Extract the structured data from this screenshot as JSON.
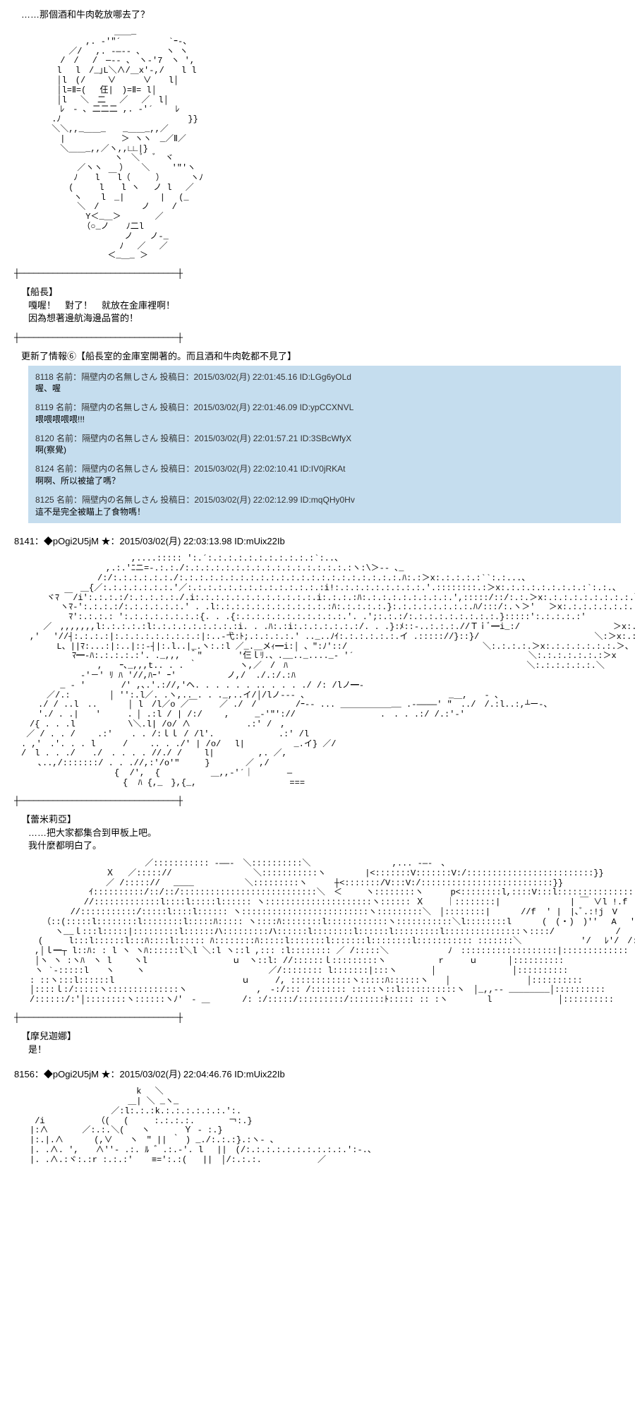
{
  "top_fragment": "……那個酒和牛肉乾放哪去了？",
  "aa1": "　　　　　　　　　　　＿＿_\n　　　 　　　　,. -'\"´　　　　　 `ｰ-、\n　　　　　 ／/　 ,. -―‐- ､　　　ヽ ヽ\n　　　　 /　/　 /　─‐- 、　ヽ‐'7　ヽ ',\n　　 　 l　 l　/_｣L＼∧/＿x'-,/　　l l\n　　 　 │l　(/　　 ∨ 　　 ∨　　l│\n　　 　 │l=Ⅱ=(　 仼|　)=Ⅱ= l│\n　　 　 │l　 ＼　二　 ／　 ／　l│\n　　 　　ﾚ　- ､ 二二二 ,. -'´　　 ﾚ\n　　 　.ﾉ　　　　　　　　　　　　　　　}}\n　　　 ＼＼,,_＿＿_　　_＿＿_,,／\n　　　　 |　　　　　　 ＞ ヽヽ　_／Ⅱ／\n　　　　 ＼＿＿_,,／ヽ,,∟∟|}\n　　　　　　　　　　　ヽ　＼ﾞ　ﾞ　ヾ\n　　 　　　　／ヽヽ　　） 　＼　　 '\"'ヽ\n　　 　　　 ﾉ　　l　￣l（　　　）　　　 ヽﾉ\n　　 　　　(　　　l　　l ヽ　 ノ l　 ／\n　　 　　　 ヽ 　 l　_| 　　　 |　 (_\n　　 　　　　＼　/　　　　　ノ　　 /\n　　 　　　　　Y＜_＿＞　　　　／\n　　 　　　　 （○_ノ　　ﾉ二l\n　　 　　　　　　　　　 ノ　　ノ-_\n　　 　　　　　　　　　ﾉ　 ／　 ／\n　　 　　　　　　　 ＜_＿_ ＞",
  "speaker1": "【船長】",
  "text1": "嘎喔！　對了！　就放在金庫裡啊！\n因為想著邊航海邊品嘗的！",
  "update_label": "更新了情報⑥【船長室的金庫室開著的。而且酒和牛肉乾都不見了】",
  "comments": [
    {
      "header": "8118 名前：隔壁内の名無しさん 投稿日：2015/03/02(月) 22:01:45.16 ID:LGg6yOLd",
      "body": "喔、喔"
    },
    {
      "header": "8119 名前：隔壁内の名無しさん 投稿日：2015/03/02(月) 22:01:46.09 ID:ypCCXNVL",
      "body": "喂喂喂喂喂!!!"
    },
    {
      "header": "8120 名前：隔壁内の名無しさん 投稿日：2015/03/02(月) 22:01:57.21 ID:3SBcWfyX",
      "body": "啊(察覺)"
    },
    {
      "header": "8124 名前：隔壁内の名無しさん 投稿日：2015/03/02(月) 22:02:10.41 ID:IV0jRKAt",
      "body": "啊啊、所以被搶了嗎？"
    },
    {
      "header": "8125 名前：隔壁内の名無しさん 投稿日：2015/03/02(月) 22:02:12.99 ID:mqQHy0Hv",
      "body": "這不是完全被瞄上了食物嗎！"
    }
  ],
  "post1_header": "8141：◆pOgi2U5jM ★：2015/03/02(月) 22:03:13.98 ID:mUix22Ib",
  "aa2": "　　　　　　　　　　　　　,....::::: ':.´:.:.:.:.:.:.:.:.:.:.:`:..、\n　　　　　　　　　　,.:.'ﾆニ=-.:.:./:.:.:.:.:.:.:.:.:.:.:.:.:.:.:.:.:ヽ:\\＞-- ､_\n　　　　　　　　　/:/:.:.:.:.:.:./:.:.:.:.:.:.:.:.:.:.:.:.:.:.:.:.:.:.:.:.:.:.ﾊ:.:＞x:.:.:.:.:``:.:...、\n　　　　　　　＿{／:.:.:.:.:.:.:.'／:.:.:.:.:.:.:.:.:.:.:.:.:.:i!:.:.:.:.:.:.:.:.:.'.::::::::.:＞x:.:.:.:.:.:.:.:.:`:.:.、\n　　　ヾﾏ ￣/i':.:.:.:/:.:.:.:.:./.i:.:.:.:.:.:.:.:.:.:.:.:.i:.:.:.:ﾊ:.:.:.:.:.:.:.:.:.',:::::/::/:.:.＞x:.:.:.:.:.:.:.:.:.＼\n　　　　 ヽﾏ-':.:.:.:/:.:.:.:.:.:.' . .l:.:.:.:.:.:.:.:.:.:.:.:ﾊ:.:.:.:.:.}:.:.:.:.:.:.:.:.ﾊ/:::/:.ヽ＞'　 ＞x:.:.:.:.:.:.:.:.:＞x\n　　　　　 ﾏ':.:.:.: ':.:.:.:.:.:.:.:{. . .{:.:.:.:.:.:.:.:.:.:.:.'. .';:.:.:/:.:.:.:.:.:.:.:.:.}:::::':.:.:.:.:'　　　　　　＞x:.:.:.:.:.:.:.:.:＞x\n　　 ／　,,,,,,,l:.:.:.:.:l:.:.:.:.:.:.:.:.:i. . .ﾊ:.:i:.:.:.:.:.:.:/. . .}:ﾒ::-..:.:.:.//Ｔｉﾞ━i_:/　　　　　　　　　　　＞x:.:.:.:.:.:.:.:＞、\n　,' 　'//┤:.:.:.:|:.:.:.:.:.:.:.:.:|:..-弋:ﾄ;.:.:.:.:.' .._..ﾉｲ:.:.:.:.:.:.イ .::::://}::}/　　　　　　　　　　　　　 ＼:＞x:.:.:.:.:.:.:.:.＞、\n 　　　 L、||ﾏ:...:|:..|::-┤|:.l..|_.ヽ:.:l ／_.＿メｨ━i:│ 、\":ﾉ'::/　　　　　　　　　　　　　　　　＼:.:.:.:.＞x:.:.:.:.:.:.:.＞、\n　　　　　　ﾏ━-ﾊ:.:.:.:.:'. ._,,,　＾\" 　　　 '仨ｌﾘ.、.__.._...._- '´　　　　　　　　　　　　　　　　　　　　 ＼:.:.:.:.:.:.:＞x\n　　　　　　　　　,　　ｰ､_,,,t.. . . ｀　　　　　ヽ,／　/　ﾊ 　　　　　　　　　　　　　　　　　　　　　　　　　　　 ＼:.:.:.:.:.:.＼\n　　　　　　　-'－' ﾘ ﾊ '//,ﾊｰ' ｰ'          ノ,/  ./.:/.:ﾊ\n　　　　 _ - '　　 　 /' ,､.'.://,'ヘ. . . . . . .. . . . ./ /: /lノ━-\n　　　／/.:　　　　 │ ′':.l／. .ヽ,.. . . ._,..イ/│/lノ--- 、　　　　　　　　　　　　　　　　　_＿,　　- 、\n　　./ / ..l　..　　 　│ l　/l／o ／￣　　 ／ ./　/　　　　 /ｰ-- ... ＿＿＿＿＿＿__ .-――――' \"　../　/.:l..:,┴ー-、\n　　'./ . .|　　'　 　 ．│ .:l / | /:/　　 ,　　　_-'\"'://　　　　　　　　　　.　. . .:/ /.:'-'\n　/{ . . .l　　　　 　 \\＼.l| /o/ ∧　　　　　　 .:' /　,\n ／ / . . /　　 .:' 　 . . /:ｌｌ / /l'.　　　　　　　 .:' /l\n. ,'　.'. . . l　 　 /　　 .. . ./' | /o/ 　l|　 　 　 　_.イ} ／/\n/　l . . ./　　./　. . . . //./ /　　 l|　　　 　 ,. ／,\n　　､..,/:::::::/ . . .//,:'/o'\"　　　}　　 　 ／ ,/\n　　　　　　　　　　　{  /',  {　　　　　　＿,,‐'´｜　　　　―\n　　　　　　　　　　　　{  ﾊ {,_　},{_,　　　　　　　　　　　===",
  "speaker2": "【蕾米莉亞】",
  "text2": "……把大家都集合到甲板上吧。\n我什麼都明白了。",
  "aa3": "　　　　　　　　　　　　　　 ／::::::::::: -――-　＼::::::::::＼　　　　　　　　　 ,... -―-　、\n　　　　　　　　　　Ｘ　 ／:::::// 　　　　　　　　　＼:::::::::::ヽ　　　　 |<:::::::V:::::::V:/:::::::::::::::::::::::::}}\n　　　　　　　　　　／ /::::://　 ____　　　　　　＼:::::::::ヽ　　  ┼<:::::::/V:::V:/::::::::::::::::::::::::::}}\n　　　　　　　　ｲ::::::::::/::/::/:::::::::::::::::::::::::::＼　＜　   ヽ::::::::ヽ　　  p<::::::::l,::::V:::l::::::::::::::::::::::::::}}\n　　 　 　 　 //:::::::::::::l::::l:::::l:::::: ヽ:::::::::::::::::::::ヽ:::::: Ｘ　　 ｜::::::::|　　　　　　　  | ￣ ∨l !.f\n　　 　 　 //:::::::::::/:::::l::::l:::::: ヽ:::::::::::::::::::::::::ヽ:::::::::＼　│::::::::|　　　 //f  ' |　|､ﾞ.:!j　V\n　　　（::(:::::l::::::::l::::::::l:::::ﾊ::::: ヽ::::ﾊ::::::::l::::::::::::ヽ:::::::::::＼l::::::::l 　　　(　(・)　)'' 　A 　'::::::\n　　　　ヽ__ｌ:::l:::::|:::::::::l::::::ハ:::::::::ハ::::::l::::::::l::::::l:::::::::l:::::::::::::::ヽ::::/　　　　　 　 /　  F　_.}::::::::::::\n　　(　　　l:::l::::::l:::ﾊ::::l:::::: ﾊ::::::::ﾊ:::::l:::::::l:::::::l::::::::l::::::::::: :::::::＼　　　　　　　'/　 ﾚ'/　/:::::::::::::::::\n　 ,│ｌ━┬ l::ﾊ: : l ヽ ヽﾊ::::::l＼l ＼:l ヽ::l ,::: :l:::::::: ／ /:::::＼　　　　　　　ﾉ　:::::::::::::::::::|:::::::::::::\n　 │ヽ ヽ :ヽﾊ　ヽ l　　 ヽl　　　　　　　　　　ｕ　ヽ::l: //::::::ｌ:::::::::ヽ 　　　　 　r　　　ｕ 　　　│::::::::::\n　 ヽ `-:::::l　　ヽ　　 ヽ　　　　　　　　　　　　　　 ／/:::::::: l:::::::|:::ヽ　　　　│　　　　　　　　　│::::::::::\n　: ::ヽ:::l::::::l　　　　　　　　　　　　　　　ｕ　　　/, ::::::::::::ヽ:::::ﾊ::::::ヽ　　│　　　　　　　　　│::::::::::\n　│::::ｌ:/:::::ヽ::::::::::::::ヽ　　 　　　　　 ,　-:/::: /::::::: :::::ヽ::l:::::::::::ヽ　│_,,-- ________│::::::::::\n　/::::::/:'│::::::::ヽ::::::ヽﾉ'　- ＿ 　 　 /: :/:::::/:::::::::/:::::::ﾄ::::: :: :ヽ　　 　　l　 　 　　　　 │::::::::::",
  "speaker3": "【摩兒迦娜】",
  "text3": "是！",
  "post2_header": "8156：◆pOgi2U5jM ★：2015/03/02(月) 22:04:46.76 ID:mUix22Ib",
  "aa4": "　　　　　　　　　　　　　 k　 ＼\n　　　　　　　　　　　 　＿| ＼ _ヽ_\n　　　　　　　　　　 ／:l:.:.:k.:.:.:.:.:.:.':.\n　 /i　　　　　 　（(　 (　　　:.:.:.:.　　　　￢:.}\n　|:∧　　　　／:.:.＼(　　ヽ　　　　Ｙ - :.}\n　|:.|.∧　　　 (,∨　　ヽ　\" || ｀ ) _./:.:.:}.:ヽ- ､\n　|. .∧. ',　　∧'′- .:. ﾙ ゛.:.-'. l 　||　(/:.:.:.:.:.:.:.:.:.:.':-.、\n　|. .∧.:ヾ:.:r :.:.:′  　≡=':.:(   ||　│/:.:.:.　　　　　　 ／",
  "divider": "┼─────────────────────────────────┼"
}
